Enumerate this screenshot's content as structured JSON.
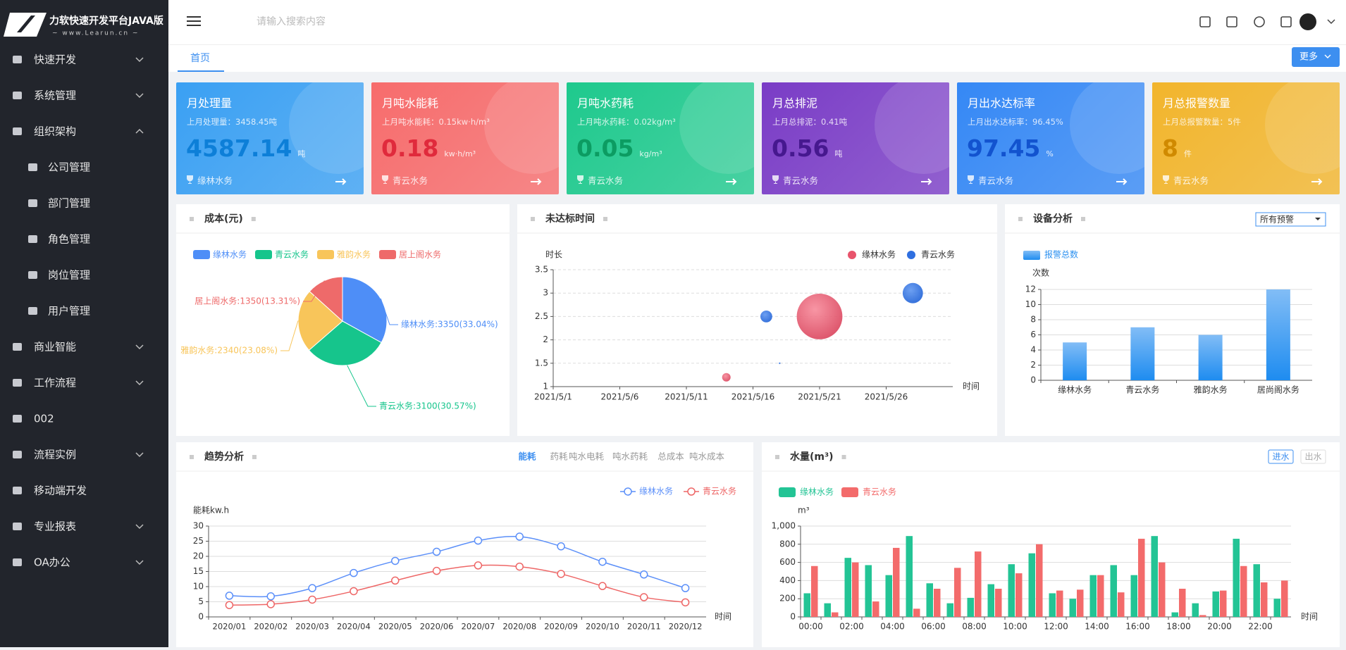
{
  "sidebar": {
    "logo_title": "力软快速开发平台JAVA版",
    "logo_subtitle": "~ www.Learun.cn ~",
    "menu": [
      {
        "label": "快速开发",
        "has_submenu": true
      },
      {
        "label": "系统管理",
        "has_submenu": true
      },
      {
        "label": "组织架构",
        "has_submenu": true,
        "children": [
          "公司管理",
          "部门管理",
          "角色管理",
          "岗位管理",
          "用户管理"
        ]
      },
      {
        "label": "商业智能",
        "has_submenu": true
      },
      {
        "label": "工作流程",
        "has_submenu": true
      },
      {
        "label": "002",
        "has_submenu": false
      },
      {
        "label": "流程实例",
        "has_submenu": true
      },
      {
        "label": "移动端开发",
        "has_submenu": false
      },
      {
        "label": "专业报表",
        "has_submenu": true
      },
      {
        "label": "OA办公",
        "has_submenu": true
      }
    ]
  },
  "header": {
    "search_placeholder": "请输入搜索内容",
    "tab": "首页",
    "more_button": "更多"
  },
  "cards": [
    {
      "title": "月处理量",
      "last_month": "上月处理量：3458.45吨",
      "value": 4587.14,
      "unit": "吨",
      "company": "缘林水务",
      "color": "#3aa0f3"
    },
    {
      "title": "月吨水能耗",
      "last_month": "上月吨水能耗：0.15kw·h/m³",
      "value": 0.18,
      "unit": "kw·h/m³",
      "company": "青云水务",
      "color": "#f76c6c"
    },
    {
      "title": "月吨水药耗",
      "last_month": "上月吨水药耗：0.02kg/m³",
      "value": 0.05,
      "unit": "kg/m³",
      "company": "青云水务",
      "color": "#1ec98d"
    },
    {
      "title": "月总排泥",
      "last_month": "上月总排泥：0.41吨",
      "value": 0.56,
      "unit": "吨",
      "company": "青云水务",
      "color": "#7a3cc6"
    },
    {
      "title": "月出水达标率",
      "last_month": "上月出水达标率：96.45%",
      "value": 97.45,
      "unit": "%",
      "company": "青云水务",
      "color": "#3588f5"
    },
    {
      "title": "月总报警数量",
      "last_month": "上月总报警数量：5件",
      "value": 8,
      "unit": "件",
      "company": "青云水务",
      "color": "#f2b52c"
    }
  ],
  "cost_chart": {
    "type": "pie",
    "title": "成本(元)",
    "categories": [
      "缘林水务",
      "青云水务",
      "雅韵水务",
      "居上阁水务"
    ],
    "values": [
      3350,
      3100,
      2340,
      1350
    ],
    "value_labels": [
      "缘林水务:3350(33.04%)",
      "青云水务:3100(30.57%)",
      "雅韵水务:2340(23.08%)",
      "居上阁水务:1350(13.31%)"
    ],
    "colors": [
      "#4e8ef7",
      "#16c58c",
      "#f8c55a",
      "#ee6a6a"
    ]
  },
  "delay_chart": {
    "type": "scatter",
    "title": "未达标时间",
    "y_label": "时长",
    "x_label": "时间",
    "xlim": [
      "2021/5/1",
      "2021/5/31"
    ],
    "xticks": [
      "2021/5/1",
      "2021/5/6",
      "2021/5/11",
      "2021/5/16",
      "2021/5/21",
      "2021/5/26"
    ],
    "ylim": [
      1,
      3.5
    ],
    "yticks": [
      1,
      1.5,
      2,
      2.5,
      3,
      3.5
    ],
    "grid": true,
    "series": [
      {
        "name": "缘林水务",
        "color": "#e8546c",
        "x": [
          "2021/5/14",
          "2021/5/21"
        ],
        "values": [
          1.2,
          2.5
        ],
        "sizes": [
          10,
          54
        ]
      },
      {
        "name": "青云水务",
        "color": "#2f6fe0",
        "x": [
          "2021/5/17",
          "2021/5/18",
          "2021/5/28"
        ],
        "values": [
          2.5,
          1.5,
          3
        ],
        "sizes": [
          14,
          2,
          24
        ]
      }
    ]
  },
  "device_chart": {
    "type": "bar",
    "title": "设备分析",
    "filter": "所有预警",
    "series_name": "报警总数",
    "y_label": "次数",
    "categories": [
      "缘林水务",
      "青云水务",
      "雅韵水务",
      "居尚阁水务"
    ],
    "values": [
      5,
      7,
      6,
      12
    ],
    "ylim": [
      0,
      12
    ],
    "yticks": [
      0,
      2,
      4,
      6,
      8,
      10,
      12
    ],
    "grid": true,
    "color": "#2b90f0"
  },
  "trend_chart": {
    "type": "line",
    "title": "趋势分析",
    "tabs": [
      {
        "label": "能耗",
        "active": true
      },
      {
        "label": "药耗",
        "active": false
      },
      {
        "label": "吨水电耗",
        "active": false
      },
      {
        "label": "吨水药耗",
        "active": false
      },
      {
        "label": "总成本",
        "active": false
      },
      {
        "label": "吨水成本",
        "active": false
      }
    ],
    "y_label": "能耗kw.h",
    "x_label": "时间",
    "categories": [
      "2020/01",
      "2020/02",
      "2020/03",
      "2020/04",
      "2020/05",
      "2020/06",
      "2020/07",
      "2020/08",
      "2020/09",
      "2020/10",
      "2020/11",
      "2020/12"
    ],
    "ylim": [
      0,
      30
    ],
    "yticks": [
      0,
      5,
      10,
      15,
      20,
      25,
      30
    ],
    "grid": true,
    "series": [
      {
        "name": "缘林水务",
        "color": "#5b8ff9",
        "values": [
          7,
          6.8,
          9.5,
          14.5,
          18.5,
          21.5,
          25.2,
          26.5,
          23.3,
          18.2,
          14,
          9.5
        ]
      },
      {
        "name": "青云水务",
        "color": "#ee6666",
        "values": [
          3.9,
          4.2,
          5.7,
          8.5,
          12,
          15.2,
          17,
          16.6,
          14.2,
          10.2,
          6.5,
          4.8
        ]
      }
    ]
  },
  "water_chart": {
    "type": "bar",
    "title": "水量(m³)",
    "tabs": [
      {
        "label": "进水",
        "active": true
      },
      {
        "label": "出水",
        "active": false
      }
    ],
    "y_label": "m³",
    "x_label": "时间",
    "categories": [
      "00:00",
      null,
      "02:00",
      null,
      "04:00",
      null,
      "06:00",
      null,
      "08:00",
      null,
      "10:00",
      null,
      "12:00",
      null,
      "14:00",
      null,
      "16:00",
      null,
      "18:00",
      null,
      "20:00",
      null,
      "22:00",
      null
    ],
    "ylim": [
      0,
      1000
    ],
    "yticks": [
      0,
      200,
      400,
      600,
      800,
      {
        "value": 1000,
        "label": "1,000"
      }
    ],
    "grid": true,
    "series": [
      {
        "name": "缘林水务",
        "color": "#23c495",
        "values": [
          260,
          150,
          650,
          570,
          460,
          890,
          370,
          150,
          210,
          360,
          580,
          700,
          260,
          200,
          460,
          570,
          460,
          890,
          50,
          150,
          280,
          860,
          580,
          200
        ]
      },
      {
        "name": "青云水务",
        "color": "#f36b6b",
        "values": [
          560,
          50,
          600,
          170,
          760,
          90,
          310,
          540,
          720,
          310,
          480,
          800,
          290,
          300,
          460,
          270,
          860,
          600,
          310,
          20,
          290,
          560,
          380,
          400
        ]
      }
    ]
  }
}
